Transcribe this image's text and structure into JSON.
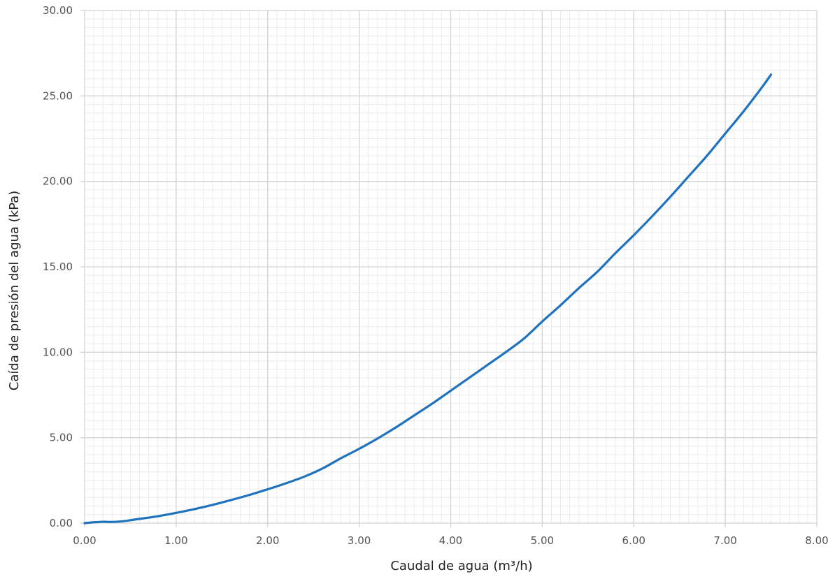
{
  "chart_data": {
    "type": "line",
    "title": "",
    "xlabel": "Caudal de agua (m³/h)",
    "ylabel": "Caída de presión del agua (kPa)",
    "xlim": [
      0,
      8
    ],
    "ylim": [
      0,
      30
    ],
    "x_major_step": 1,
    "y_major_step": 5,
    "x_minor_step": 0.1,
    "y_minor_step": 0.5,
    "grid": true,
    "x_tick_labels": [
      "0.00",
      "1.00",
      "2.00",
      "3.00",
      "4.00",
      "5.00",
      "6.00",
      "7.00",
      "8.00"
    ],
    "y_tick_labels": [
      "0.00",
      "5.00",
      "10.00",
      "15.00",
      "20.00",
      "25.00",
      "30.00"
    ],
    "series": [
      {
        "color": "#1f72bd",
        "x": [
          0,
          0.1,
          0.2,
          0.3,
          0.4,
          0.5,
          0.6,
          0.8,
          1.0,
          1.2,
          1.4,
          1.6,
          1.8,
          2.0,
          2.2,
          2.4,
          2.6,
          2.8,
          3.0,
          3.2,
          3.4,
          3.6,
          3.8,
          4.0,
          4.2,
          4.4,
          4.6,
          4.8,
          5.0,
          5.2,
          5.4,
          5.6,
          5.8,
          6.0,
          6.2,
          6.4,
          6.6,
          6.8,
          7.0,
          7.2,
          7.4,
          7.5
        ],
        "y": [
          0,
          0.05,
          0.08,
          0.07,
          0.1,
          0.17,
          0.25,
          0.4,
          0.6,
          0.82,
          1.07,
          1.35,
          1.65,
          1.98,
          2.33,
          2.72,
          3.2,
          3.8,
          4.35,
          4.95,
          5.6,
          6.3,
          7.0,
          7.75,
          8.5,
          9.25,
          10.0,
          10.8,
          11.8,
          12.75,
          13.75,
          14.7,
          15.8,
          16.85,
          17.95,
          19.1,
          20.3,
          21.5,
          22.8,
          24.1,
          25.5,
          26.25
        ]
      }
    ]
  }
}
